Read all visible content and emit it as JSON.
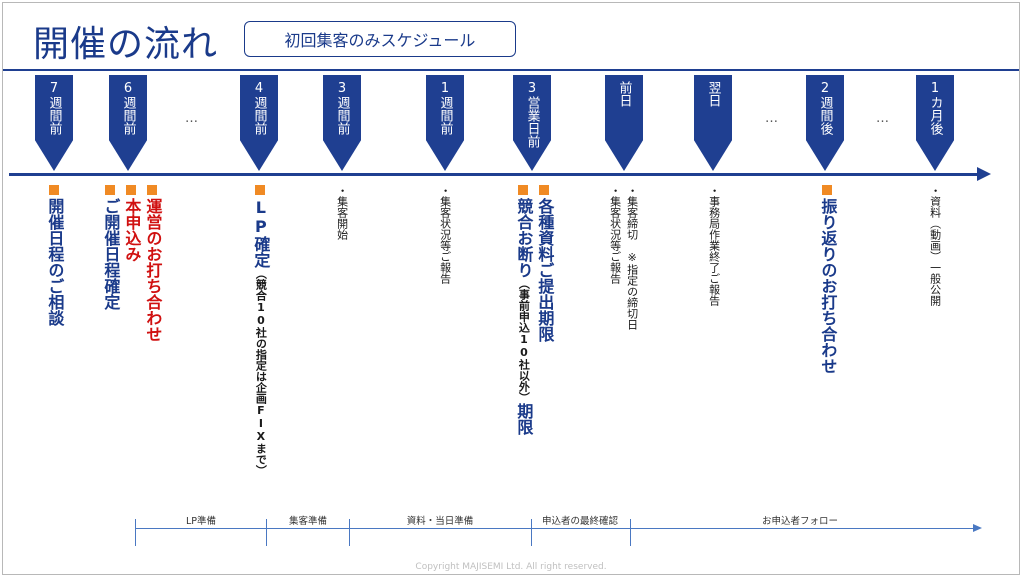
{
  "header": {
    "title": "開催の流れ",
    "subtitle": "初回集客のみスケジュール"
  },
  "markers": [
    "7週間前",
    "6週間前",
    "4週間前",
    "3週間前",
    "1週間前",
    "3営業日前",
    "前日",
    "翌日",
    "2週間後",
    "1カ月後"
  ],
  "ellipsis": "…",
  "columns": {
    "c1": "開催日程のご相談",
    "c2a": "ご開催日程確定",
    "c2b": "本申込み",
    "c2c": "運営のお打ち合わせ",
    "c3_main": "LP確定",
    "c3_note": "（競合10社の指定は企画FIXまで）",
    "c4": "・集客開始",
    "c5": "・集客状況等ご報告",
    "c6a_main": "競合お断り",
    "c6a_note": "（事前申込10社以外）",
    "c6a_tail": "期限",
    "c6b": "各種資料ご提出期限",
    "c7a": "・集客状況等ご報告",
    "c7b": "・集客締切　※指定の締切日",
    "c8": "・事務局作業終了ご報告",
    "c9": "振り返りのお打ち合わせ",
    "c10": "・資料（動画）一般公開"
  },
  "phases": [
    "LP準備",
    "集客準備",
    "資料・当日準備",
    "申込者の最終確認",
    "お申込者フォロー"
  ],
  "footer": {
    "copyright": "Copyright MAJISEMI Ltd. All right reserved."
  },
  "colors": {
    "navy": "#1f3f91",
    "accent_orange": "#f08a24",
    "alert_red": "#d01010"
  }
}
